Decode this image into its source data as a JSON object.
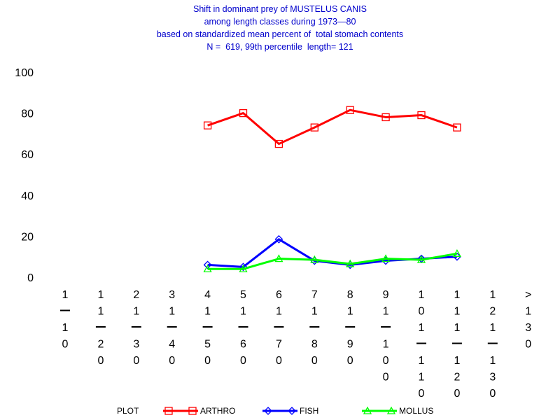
{
  "chart_data": {
    "type": "line",
    "title_lines": [
      "Shift in dominant prey of MUSTELUS CANIS",
      "among length classes during 1973—80",
      "based on standardized mean percent of  total stomach contents",
      "N =  619, 99th percentile  length= 121"
    ],
    "categories": [
      "1-10",
      "11-20",
      "21-30",
      "31-40",
      "41-50",
      "51-60",
      "61-70",
      "71-80",
      "81-90",
      "91-100",
      "101-110",
      "111-120",
      "121-130",
      ">130"
    ],
    "category_char_stacks": [
      [
        "1",
        "—",
        "1",
        "0"
      ],
      [
        "1",
        "1",
        "—",
        "2",
        "0"
      ],
      [
        "2",
        "1",
        "—",
        "3",
        "0"
      ],
      [
        "3",
        "1",
        "—",
        "4",
        "0"
      ],
      [
        "4",
        "1",
        "—",
        "5",
        "0"
      ],
      [
        "5",
        "1",
        "—",
        "6",
        "0"
      ],
      [
        "6",
        "1",
        "—",
        "7",
        "0"
      ],
      [
        "7",
        "1",
        "—",
        "8",
        "0"
      ],
      [
        "8",
        "1",
        "—",
        "9",
        "0"
      ],
      [
        "9",
        "1",
        "—",
        "1",
        "0",
        "0"
      ],
      [
        "1",
        "0",
        "1",
        "—",
        "1",
        "1",
        "0"
      ],
      [
        "1",
        "1",
        "1",
        "—",
        "1",
        "2",
        "0"
      ],
      [
        "1",
        "2",
        "1",
        "—",
        "1",
        "3",
        "0"
      ],
      [
        ">",
        "1",
        "3",
        "0"
      ]
    ],
    "ylim": [
      0,
      100
    ],
    "yticks": [
      0,
      20,
      40,
      60,
      80,
      100
    ],
    "legend_label": "PLOT",
    "legend_position": "bottom",
    "series": [
      {
        "name": "ARTHRO",
        "color": "#ff0000",
        "marker": "square",
        "values": [
          null,
          null,
          null,
          null,
          74,
          80,
          65,
          73,
          81.5,
          78,
          79,
          73,
          null,
          null
        ]
      },
      {
        "name": "FISH",
        "color": "#0000ff",
        "marker": "diamond",
        "values": [
          null,
          null,
          null,
          null,
          6,
          5,
          18.5,
          8,
          6,
          8,
          9,
          10,
          null,
          null
        ]
      },
      {
        "name": "MOLLUS",
        "color": "#00ff00",
        "marker": "triangle",
        "values": [
          null,
          null,
          null,
          null,
          4,
          4,
          9,
          8.5,
          6.5,
          9,
          8.5,
          11.5,
          null,
          null
        ]
      }
    ]
  }
}
